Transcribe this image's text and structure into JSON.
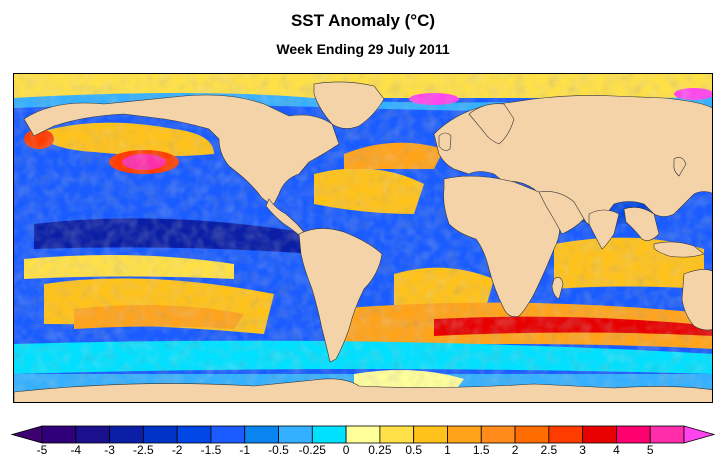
{
  "header": {
    "title": "SST Anomaly (°C)",
    "subtitle": "Week Ending 29 July 2011"
  },
  "map": {
    "land_color": "#f5d3a9",
    "boundary_color": "#333333"
  },
  "legend": {
    "colors": [
      "#3d0070",
      "#30007a",
      "#1a0f8c",
      "#0a1ea6",
      "#0033c8",
      "#0047e6",
      "#1a5cff",
      "#0a84f0",
      "#33b0ff",
      "#00e0ff",
      "#ffff99",
      "#ffe047",
      "#ffc21a",
      "#ffa31a",
      "#ff8c1a",
      "#ff6c00",
      "#ff3c00",
      "#e80000",
      "#ff006f",
      "#ff2daa",
      "#ff44ee"
    ],
    "tick_labels": [
      "-5",
      "-4",
      "-3",
      "-2.5",
      "-2",
      "-1.5",
      "-1",
      "-0.5",
      "-0.25",
      "0",
      "0.25",
      "0.5",
      "1",
      "1.5",
      "2",
      "2.5",
      "3",
      "4",
      "5"
    ]
  }
}
